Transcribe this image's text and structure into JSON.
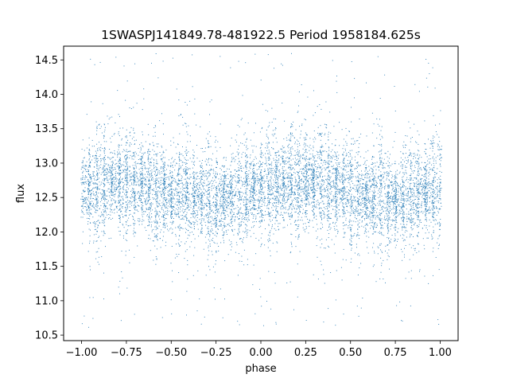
{
  "chart_data": {
    "type": "scatter",
    "title": "1SWASPJ141849.78-481922.5 Period 1958184.625s",
    "xlabel": "phase",
    "ylabel": "flux",
    "xlim": [
      -1.1,
      1.1
    ],
    "ylim": [
      10.42,
      14.7
    ],
    "x_ticks": [
      -1.0,
      -0.75,
      -0.5,
      -0.25,
      0.0,
      0.25,
      0.5,
      0.75,
      1.0
    ],
    "x_tick_labels": [
      "−1.00",
      "−0.75",
      "−0.50",
      "−0.25",
      "0.00",
      "0.25",
      "0.50",
      "0.75",
      "1.00"
    ],
    "y_ticks": [
      10.5,
      11.0,
      11.5,
      12.0,
      12.5,
      13.0,
      13.5,
      14.0,
      14.5
    ],
    "y_tick_labels": [
      "10.5",
      "11.0",
      "11.5",
      "12.0",
      "12.5",
      "13.0",
      "13.5",
      "14.0",
      "14.5"
    ],
    "grid": false,
    "marker_color": "#1f77b4",
    "series": [
      {
        "points_summary": {
          "x_range": [
            -1.0,
            1.0
          ],
          "typical_flux_range": [
            11.9,
            13.3
          ],
          "flux_centre_by_phase": [
            {
              "x": -1.0,
              "y": 12.65
            },
            {
              "x": -0.75,
              "y": 12.75
            },
            {
              "x": -0.5,
              "y": 12.6
            },
            {
              "x": -0.25,
              "y": 12.45
            },
            {
              "x": 0.0,
              "y": 12.65
            },
            {
              "x": 0.25,
              "y": 12.75
            },
            {
              "x": 0.5,
              "y": 12.6
            },
            {
              "x": 0.75,
              "y": 12.45
            },
            {
              "x": 1.0,
              "y": 12.65
            }
          ],
          "outlier_flux_range": [
            10.6,
            14.6
          ]
        }
      }
    ]
  }
}
